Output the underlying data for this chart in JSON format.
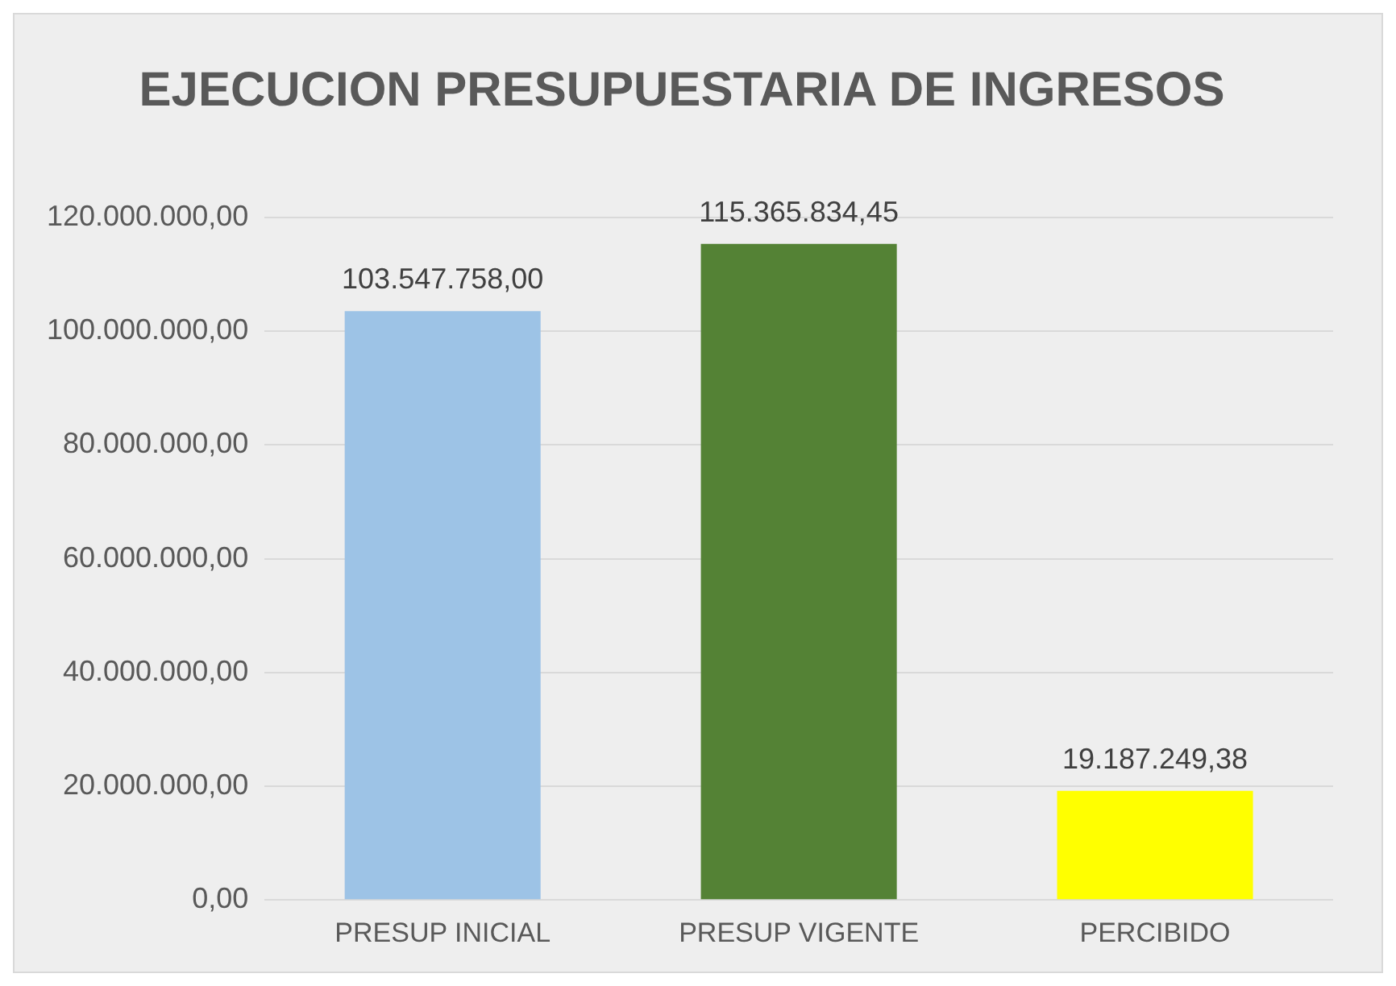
{
  "chart_data": {
    "type": "bar",
    "title": "EJECUCION PRESUPUESTARIA DE INGRESOS",
    "categories": [
      "PRESUP INICIAL",
      "PRESUP VIGENTE",
      "PERCIBIDO"
    ],
    "values": [
      103547758.0,
      115365834.45,
      19187249.38
    ],
    "colors": [
      "#9dc3e6",
      "#548235",
      "#ffff00"
    ],
    "value_labels": [
      "103.547.758,00",
      "115.365.834,45",
      "19.187.249,38"
    ],
    "ylim": [
      0,
      120000000
    ],
    "yticks": [
      {
        "value": 0,
        "label": "0,00"
      },
      {
        "value": 20000000,
        "label": "20.000.000,00"
      },
      {
        "value": 40000000,
        "label": "40.000.000,00"
      },
      {
        "value": 60000000,
        "label": "60.000.000,00"
      },
      {
        "value": 80000000,
        "label": "80.000.000,00"
      },
      {
        "value": 100000000,
        "label": "100.000.000,00"
      },
      {
        "value": 120000000,
        "label": "120.000.000,00"
      }
    ],
    "grid": "y",
    "legend": false
  }
}
